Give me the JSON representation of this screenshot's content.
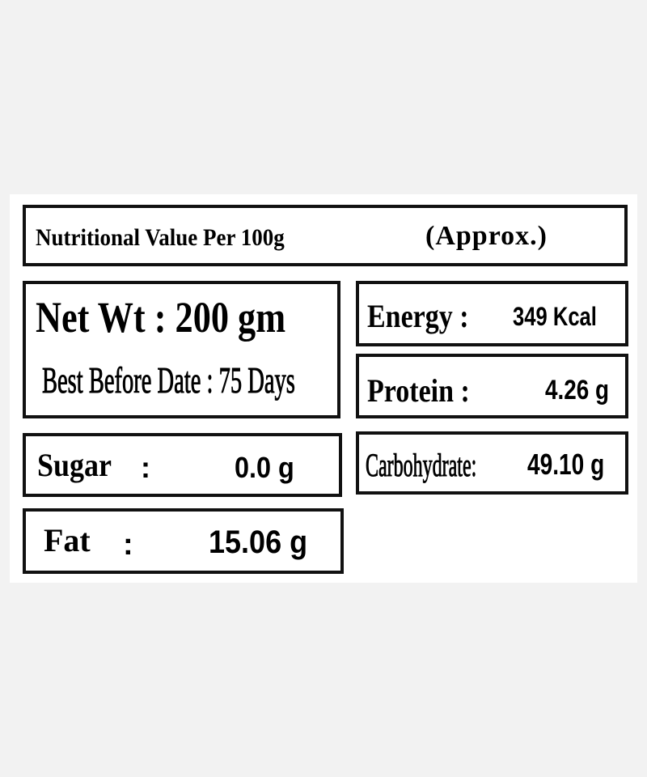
{
  "title": {
    "text": "Nutritional Value Per 100g",
    "note": "(Approx.)"
  },
  "net_weight": {
    "label": "Net Wt : 200 gm",
    "best_before": "Best Before Date : 75 Days"
  },
  "energy": {
    "label": "Energy :",
    "value": "349 Kcal"
  },
  "protein": {
    "label": "Protein :",
    "value": "4.26 g"
  },
  "sugar": {
    "label": "Sugar",
    "colon": ":",
    "value": "0.0 g"
  },
  "carbohydrate": {
    "label": "Carbohydrate:",
    "value": "49.10 g"
  },
  "fat": {
    "label": "Fat",
    "colon": ":",
    "value": "15.06 g"
  }
}
